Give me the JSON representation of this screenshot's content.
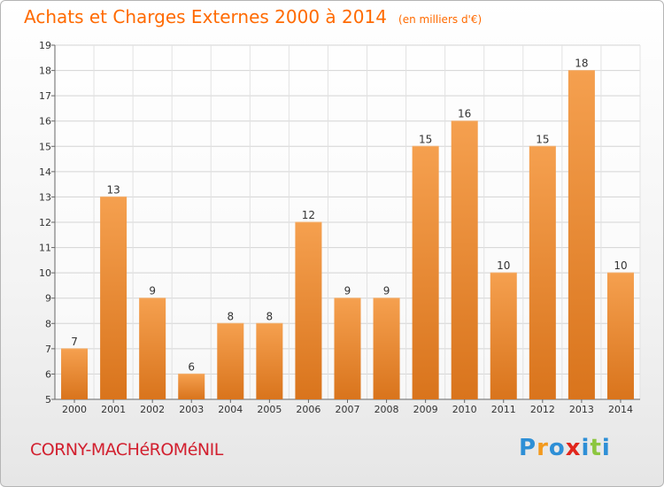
{
  "header": {
    "title": "Achats et Charges Externes 2000 à 2014",
    "subtitle": "(en milliers d'€)"
  },
  "footer": {
    "commune": "CORNY-MACHéROMéNIL",
    "logo": {
      "letters": [
        "P",
        "r",
        "o",
        "x",
        "i",
        "t",
        "i"
      ],
      "colors": [
        "#2e8fd6",
        "#f39a1e",
        "#2e8fd6",
        "#e1261c",
        "#2e8fd6",
        "#8cc63f",
        "#2e8fd6"
      ]
    }
  },
  "colors": {
    "title": "#ff6a00",
    "commune": "#d2202f",
    "bar_top": "#f5a04f",
    "bar_bottom": "#d9741c"
  },
  "chart_data": {
    "type": "bar",
    "categories": [
      "2000",
      "2001",
      "2002",
      "2003",
      "2004",
      "2005",
      "2006",
      "2007",
      "2008",
      "2009",
      "2010",
      "2011",
      "2012",
      "2013",
      "2014"
    ],
    "values": [
      7,
      13,
      9,
      6,
      8,
      8,
      12,
      9,
      9,
      15,
      16,
      10,
      15,
      18,
      10
    ],
    "ylim": [
      5,
      19
    ],
    "yticks": [
      5,
      6,
      7,
      8,
      9,
      10,
      11,
      12,
      13,
      14,
      15,
      16,
      17,
      18,
      19
    ],
    "grid": true,
    "data_labels": true
  }
}
